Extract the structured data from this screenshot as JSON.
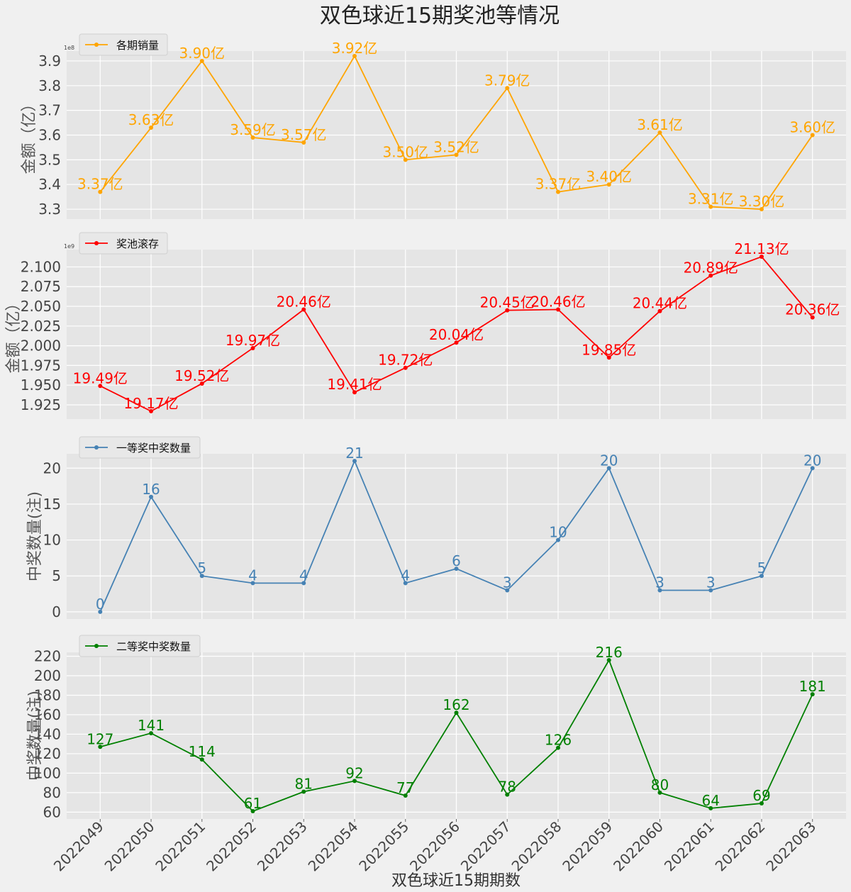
{
  "title": "双色球近15期奖池等情况",
  "xlabel": "双色球近15期期数",
  "categories": [
    "2022049",
    "2022050",
    "2022051",
    "2022052",
    "2022053",
    "2022054",
    "2022055",
    "2022056",
    "2022057",
    "2022058",
    "2022059",
    "2022060",
    "2022061",
    "2022062",
    "2022063"
  ],
  "chart_data": [
    {
      "type": "line",
      "series": [
        {
          "name": "各期销量",
          "values": [
            337000000,
            363000000,
            390000000,
            359000000,
            357000000,
            392000000,
            350000000,
            352000000,
            379000000,
            337000000,
            340000000,
            361000000,
            331000000,
            330000000,
            360000000
          ]
        }
      ],
      "labels": [
        "3.37亿",
        "3.63亿",
        "3.90亿",
        "3.59亿",
        "3.57亿",
        "3.92亿",
        "3.50亿",
        "3.52亿",
        "3.79亿",
        "3.37亿",
        "3.40亿",
        "3.61亿",
        "3.31亿",
        "3.30亿",
        "3.60亿"
      ],
      "ylabel": "金额（亿）",
      "ylim": [
        326000000,
        394000000
      ],
      "yticks": [
        330000000,
        340000000,
        350000000,
        360000000,
        370000000,
        380000000,
        390000000
      ],
      "ytick_labels": [
        "3.3",
        "3.4",
        "3.5",
        "3.6",
        "3.7",
        "3.8",
        "3.9"
      ],
      "offset_text": "1e8",
      "color": "#ffa500",
      "legend": "top-left"
    },
    {
      "type": "line",
      "series": [
        {
          "name": "奖池滚存",
          "values": [
            1949000000,
            1917000000,
            1952000000,
            1997000000,
            2046000000,
            1941000000,
            1972000000,
            2004000000,
            2045000000,
            2046000000,
            1985000000,
            2044000000,
            2089000000,
            2113000000,
            2036000000
          ]
        }
      ],
      "labels": [
        "19.49亿",
        "19.17亿",
        "19.52亿",
        "19.97亿",
        "20.46亿",
        "19.41亿",
        "19.72亿",
        "20.04亿",
        "20.45亿",
        "20.46亿",
        "19.85亿",
        "20.44亿",
        "20.89亿",
        "21.13亿",
        "20.36亿"
      ],
      "ylabel": "金额（亿）",
      "ylim": [
        1907000000,
        2122000000
      ],
      "yticks": [
        1925000000,
        1950000000,
        1975000000,
        2000000000,
        2025000000,
        2050000000,
        2075000000,
        2100000000
      ],
      "ytick_labels": [
        "1.925",
        "1.950",
        "1.975",
        "2.000",
        "2.025",
        "2.050",
        "2.075",
        "2.100"
      ],
      "offset_text": "1e9",
      "color": "#ff0000",
      "legend": "top-left"
    },
    {
      "type": "line",
      "series": [
        {
          "name": "一等奖中奖数量",
          "values": [
            0,
            16,
            5,
            4,
            4,
            21,
            4,
            6,
            3,
            10,
            20,
            3,
            3,
            5,
            20
          ]
        }
      ],
      "labels": [
        "0",
        "16",
        "5",
        "4",
        "4",
        "21",
        "4",
        "6",
        "3",
        "10",
        "20",
        "3",
        "3",
        "5",
        "20"
      ],
      "ylabel": "中奖数量(注)",
      "ylim": [
        -1,
        22
      ],
      "yticks": [
        0,
        5,
        10,
        15,
        20
      ],
      "ytick_labels": [
        "0",
        "5",
        "10",
        "15",
        "20"
      ],
      "offset_text": "",
      "color": "#4682b4",
      "legend": "top-left"
    },
    {
      "type": "line",
      "series": [
        {
          "name": "二等奖中奖数量",
          "values": [
            127,
            141,
            114,
            61,
            81,
            92,
            77,
            162,
            78,
            126,
            216,
            80,
            64,
            69,
            181
          ]
        }
      ],
      "labels": [
        "127",
        "141",
        "114",
        "61",
        "81",
        "92",
        "77",
        "162",
        "78",
        "126",
        "216",
        "80",
        "64",
        "69",
        "181"
      ],
      "ylabel": "中奖数量(注)",
      "ylim": [
        53,
        224
      ],
      "yticks": [
        60,
        80,
        100,
        120,
        140,
        160,
        180,
        200,
        220
      ],
      "ytick_labels": [
        "60",
        "80",
        "100",
        "120",
        "140",
        "160",
        "180",
        "200",
        "220"
      ],
      "offset_text": "",
      "color": "#008000",
      "legend": "top-left"
    }
  ]
}
